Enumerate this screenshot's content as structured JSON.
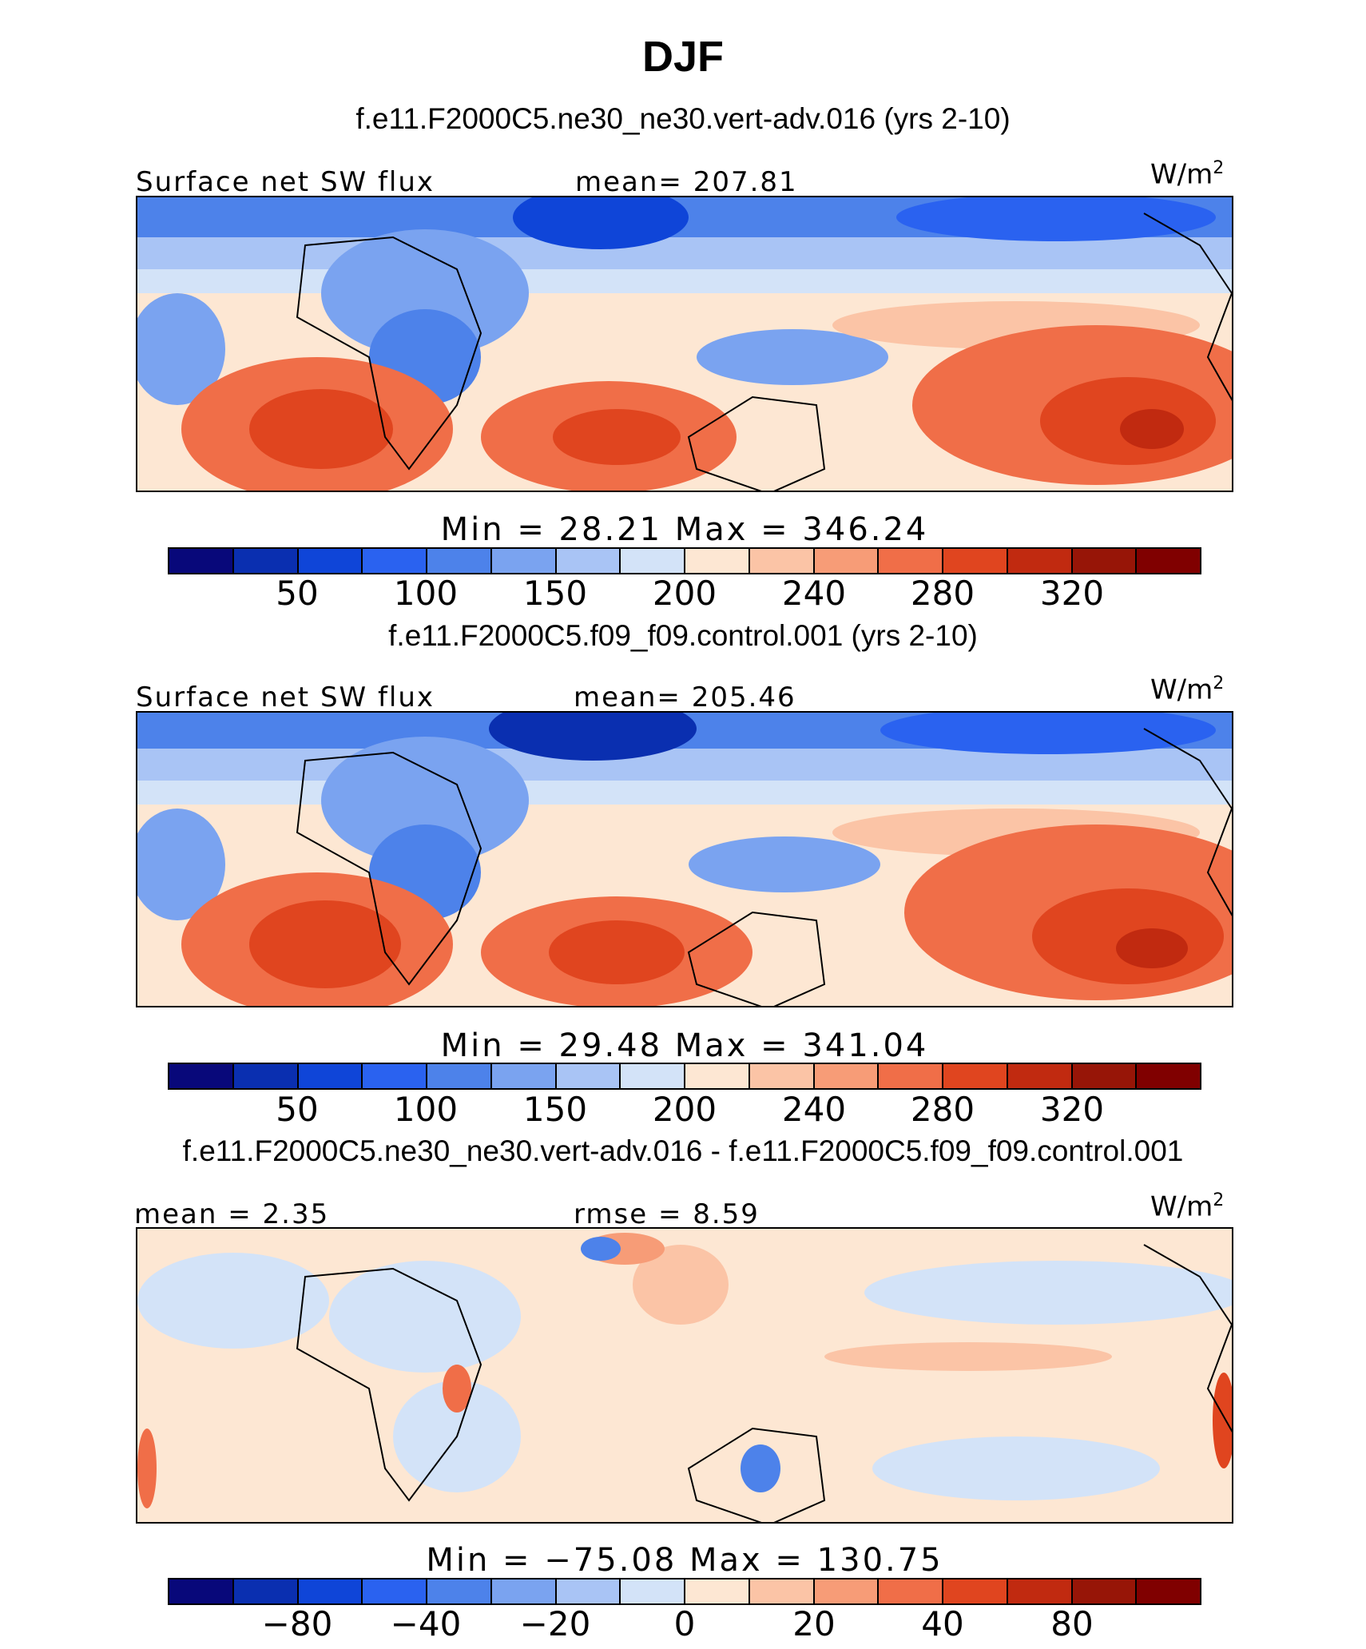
{
  "title": "DJF",
  "variable_label": "Surface net SW flux",
  "units_label": "W/m",
  "units_exp": "2",
  "panels": [
    {
      "subtitle": "f.e11.F2000C5.ne30_ne30.vert-adv.016 (yrs 2-10)",
      "left_label": "Surface net SW flux",
      "center_label": "mean=  207.81",
      "minmax": "Min  =   28.21  Max  =  346.24",
      "tick_labels": [
        "50",
        "100",
        "150",
        "200",
        "240",
        "280",
        "320"
      ]
    },
    {
      "subtitle": "f.e11.F2000C5.f09_f09.control.001 (yrs 2-10)",
      "left_label": "Surface net SW flux",
      "center_label": "mean=  205.46",
      "minmax": "Min  =   29.48  Max  =  341.04",
      "tick_labels": [
        "50",
        "100",
        "150",
        "200",
        "240",
        "280",
        "320"
      ]
    },
    {
      "subtitle": "f.e11.F2000C5.ne30_ne30.vert-adv.016 - f.e11.F2000C5.f09_f09.control.001",
      "left_label": "mean  =     2.35",
      "center_label": "rmse  =      8.59",
      "minmax": "Min  =  −75.08  Max  =  130.75",
      "tick_labels": [
        "−80",
        "−40",
        "−20",
        "0",
        "20",
        "40",
        "80"
      ]
    }
  ],
  "colors": {
    "colorbar": [
      "#08087a",
      "#0a2fb0",
      "#0f45d8",
      "#2a62f0",
      "#4d82ea",
      "#7aa3f0",
      "#a9c4f5",
      "#d3e3f8",
      "#fde7d3",
      "#fbc4a6",
      "#f79c77",
      "#f06e48",
      "#e0451f",
      "#c12a10",
      "#971507",
      "#800000"
    ]
  }
}
